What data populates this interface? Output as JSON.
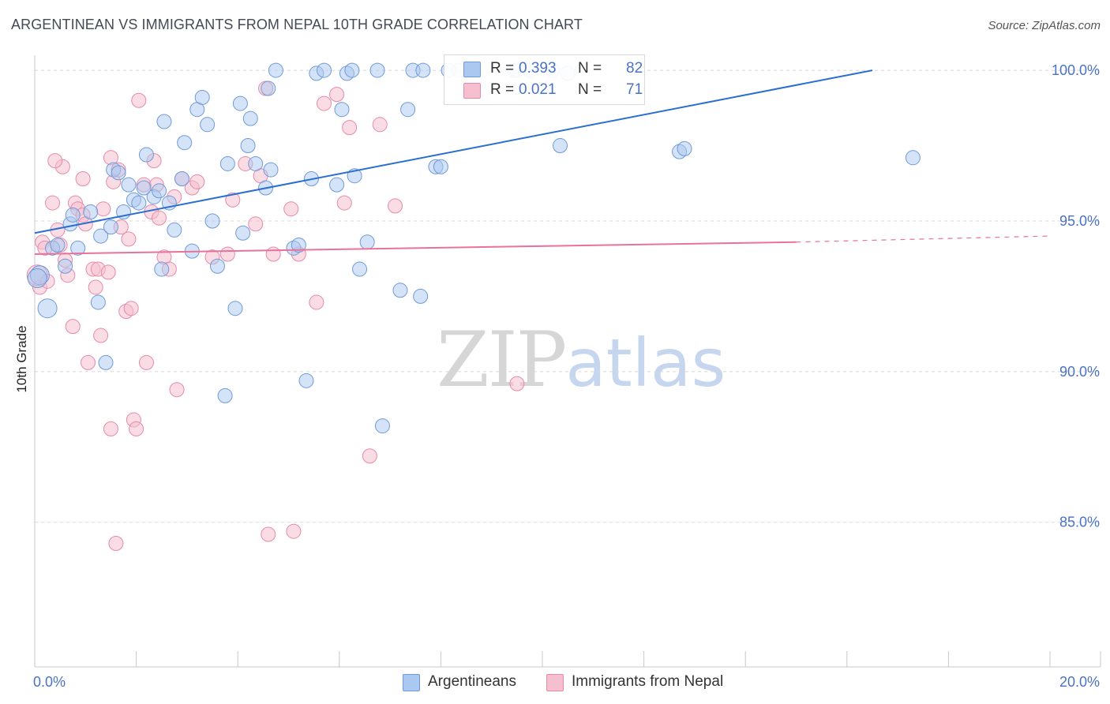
{
  "title": "ARGENTINEAN VS IMMIGRANTS FROM NEPAL 10TH GRADE CORRELATION CHART",
  "source": "Source: ZipAtlas.com",
  "watermark": {
    "zip": "ZIP",
    "atlas": "atlas"
  },
  "colors": {
    "blue_fill": "#aac8f0",
    "blue_stroke": "#6f9ad8",
    "blue_line": "#2a6fd0",
    "pink_fill": "#f6bfd0",
    "pink_stroke": "#e58aa8",
    "pink_line": "#e8729a",
    "tick_text": "#4a72c4",
    "grid": "#d8d8d8"
  },
  "legend": {
    "rows": [
      {
        "r_label": "R =",
        "r_value": "0.393",
        "n_label": "N =",
        "n_value": "82",
        "color": "#aac8f0",
        "stroke": "#6f9ad8"
      },
      {
        "r_label": "R =",
        "r_value": "0.021",
        "n_label": "N =",
        "n_value": "71",
        "color": "#f6bfd0",
        "stroke": "#e58aa8"
      }
    ]
  },
  "bottom_legend": [
    {
      "label": "Argentineans",
      "color": "#aac8f0",
      "stroke": "#6f9ad8"
    },
    {
      "label": "Immigrants from Nepal",
      "color": "#f6bfd0",
      "stroke": "#e58aa8"
    }
  ],
  "chart_data": {
    "type": "scatter",
    "title": "ARGENTINEAN VS IMMIGRANTS FROM NEPAL 10TH GRADE CORRELATION CHART",
    "ylabel": "10th Grade",
    "xlabel": "",
    "xlim": [
      0,
      20
    ],
    "ylim": [
      80.2,
      100.5
    ],
    "x_ticks": [
      0,
      20
    ],
    "x_tick_labels": [
      "0.0%",
      "20.0%"
    ],
    "y_ticks": [
      85,
      90,
      95,
      100
    ],
    "y_tick_labels": [
      "85.0%",
      "90.0%",
      "95.0%",
      "100.0%"
    ],
    "grid": "horizontal dashed",
    "series": [
      {
        "name": "Argentineans",
        "points": [
          [
            0.1,
            93.2
          ],
          [
            0.25,
            92.1
          ],
          [
            0.35,
            94.1
          ],
          [
            0.45,
            94.2
          ],
          [
            0.6,
            93.5
          ],
          [
            0.7,
            94.9
          ],
          [
            0.75,
            95.2
          ],
          [
            0.85,
            94.1
          ],
          [
            1.1,
            95.3
          ],
          [
            1.25,
            92.3
          ],
          [
            1.3,
            94.5
          ],
          [
            1.4,
            90.3
          ],
          [
            1.5,
            94.8
          ],
          [
            1.55,
            96.7
          ],
          [
            1.65,
            96.6
          ],
          [
            1.75,
            95.3
          ],
          [
            1.85,
            96.2
          ],
          [
            1.95,
            95.7
          ],
          [
            2.05,
            95.6
          ],
          [
            2.15,
            96.1
          ],
          [
            2.2,
            97.2
          ],
          [
            2.35,
            95.8
          ],
          [
            2.45,
            96.0
          ],
          [
            2.5,
            93.4
          ],
          [
            2.55,
            98.3
          ],
          [
            2.65,
            95.6
          ],
          [
            2.75,
            94.7
          ],
          [
            2.9,
            96.4
          ],
          [
            2.95,
            97.6
          ],
          [
            3.1,
            94.0
          ],
          [
            3.2,
            98.7
          ],
          [
            3.3,
            99.1
          ],
          [
            3.4,
            98.2
          ],
          [
            3.5,
            95.0
          ],
          [
            3.6,
            93.5
          ],
          [
            3.75,
            89.2
          ],
          [
            3.8,
            96.9
          ],
          [
            3.95,
            92.1
          ],
          [
            4.05,
            98.9
          ],
          [
            4.1,
            94.6
          ],
          [
            4.2,
            97.5
          ],
          [
            4.25,
            98.4
          ],
          [
            4.35,
            96.9
          ],
          [
            4.55,
            96.1
          ],
          [
            4.6,
            99.4
          ],
          [
            4.65,
            96.7
          ],
          [
            4.75,
            100.0
          ],
          [
            5.1,
            94.1
          ],
          [
            5.2,
            94.2
          ],
          [
            5.35,
            89.7
          ],
          [
            5.45,
            96.4
          ],
          [
            5.55,
            99.9
          ],
          [
            5.7,
            100.0
          ],
          [
            5.95,
            96.2
          ],
          [
            6.05,
            98.7
          ],
          [
            6.15,
            99.9
          ],
          [
            6.25,
            100.0
          ],
          [
            6.3,
            96.5
          ],
          [
            6.4,
            93.4
          ],
          [
            6.55,
            94.3
          ],
          [
            6.75,
            100.0
          ],
          [
            6.85,
            88.2
          ],
          [
            7.2,
            92.7
          ],
          [
            7.35,
            98.7
          ],
          [
            7.45,
            100.0
          ],
          [
            7.65,
            100.0
          ],
          [
            7.6,
            92.5
          ],
          [
            7.9,
            96.8
          ],
          [
            8.0,
            96.8
          ],
          [
            8.15,
            100.0
          ],
          [
            8.35,
            100.0
          ],
          [
            8.6,
            100.0
          ],
          [
            9.45,
            100.0
          ],
          [
            9.5,
            100.0
          ],
          [
            9.75,
            100.0
          ],
          [
            10.2,
            100.0
          ],
          [
            10.5,
            99.9
          ],
          [
            10.35,
            97.5
          ],
          [
            12.7,
            97.3
          ],
          [
            12.8,
            97.4
          ],
          [
            17.3,
            97.1
          ],
          [
            0.05,
            93.1
          ]
        ]
      },
      {
        "name": "Immigrants from Nepal",
        "points": [
          [
            0.1,
            92.8
          ],
          [
            0.15,
            94.3
          ],
          [
            0.25,
            93.0
          ],
          [
            0.35,
            95.6
          ],
          [
            0.45,
            94.7
          ],
          [
            0.5,
            94.2
          ],
          [
            0.6,
            93.7
          ],
          [
            0.65,
            93.2
          ],
          [
            0.75,
            91.5
          ],
          [
            0.8,
            95.6
          ],
          [
            0.85,
            95.4
          ],
          [
            0.95,
            96.4
          ],
          [
            0.95,
            95.2
          ],
          [
            1.05,
            90.3
          ],
          [
            1.15,
            93.4
          ],
          [
            1.2,
            92.8
          ],
          [
            1.25,
            93.4
          ],
          [
            1.3,
            91.2
          ],
          [
            1.35,
            95.4
          ],
          [
            1.45,
            93.3
          ],
          [
            1.5,
            88.1
          ],
          [
            1.5,
            97.1
          ],
          [
            1.55,
            96.3
          ],
          [
            1.6,
            84.3
          ],
          [
            1.65,
            96.7
          ],
          [
            1.7,
            94.8
          ],
          [
            1.8,
            92.0
          ],
          [
            1.85,
            94.4
          ],
          [
            1.9,
            92.1
          ],
          [
            1.95,
            88.4
          ],
          [
            2.0,
            88.1
          ],
          [
            2.05,
            99.0
          ],
          [
            2.15,
            96.2
          ],
          [
            2.2,
            90.3
          ],
          [
            2.3,
            95.3
          ],
          [
            2.35,
            97.0
          ],
          [
            2.4,
            96.2
          ],
          [
            2.45,
            95.1
          ],
          [
            2.55,
            93.8
          ],
          [
            2.65,
            93.4
          ],
          [
            2.75,
            95.8
          ],
          [
            2.8,
            89.4
          ],
          [
            2.9,
            96.4
          ],
          [
            3.1,
            96.1
          ],
          [
            3.2,
            96.3
          ],
          [
            3.8,
            93.9
          ],
          [
            3.9,
            95.7
          ],
          [
            4.15,
            96.9
          ],
          [
            4.35,
            94.9
          ],
          [
            4.45,
            96.5
          ],
          [
            4.55,
            99.4
          ],
          [
            4.6,
            84.6
          ],
          [
            4.7,
            93.9
          ],
          [
            5.05,
            95.4
          ],
          [
            5.1,
            84.7
          ],
          [
            5.2,
            93.9
          ],
          [
            5.55,
            92.3
          ],
          [
            5.7,
            98.9
          ],
          [
            5.95,
            99.2
          ],
          [
            6.1,
            95.6
          ],
          [
            6.2,
            98.1
          ],
          [
            6.6,
            87.2
          ],
          [
            6.8,
            98.2
          ],
          [
            7.1,
            95.5
          ],
          [
            9.5,
            89.6
          ],
          [
            0.05,
            93.2
          ],
          [
            0.2,
            94.1
          ],
          [
            0.55,
            96.8
          ],
          [
            0.4,
            97.0
          ],
          [
            1.0,
            94.9
          ],
          [
            3.5,
            93.8
          ]
        ]
      }
    ],
    "trend_lines": [
      {
        "series": "Argentineans",
        "x": [
          0,
          16.5
        ],
        "y": [
          94.6,
          100.0
        ],
        "style": "solid"
      },
      {
        "series": "Immigrants from Nepal",
        "x": [
          0,
          15.0
        ],
        "y": [
          93.9,
          94.3
        ],
        "style": "solid"
      },
      {
        "series": "Immigrants from Nepal",
        "x": [
          15.0,
          20.0
        ],
        "y": [
          94.3,
          94.5
        ],
        "style": "dashed"
      }
    ],
    "legend": {
      "placement": "top-center",
      "entries": [
        {
          "name": "Argentineans",
          "R": "0.393",
          "N": "82"
        },
        {
          "name": "Immigrants from Nepal",
          "R": "0.021",
          "N": "71"
        }
      ]
    }
  }
}
